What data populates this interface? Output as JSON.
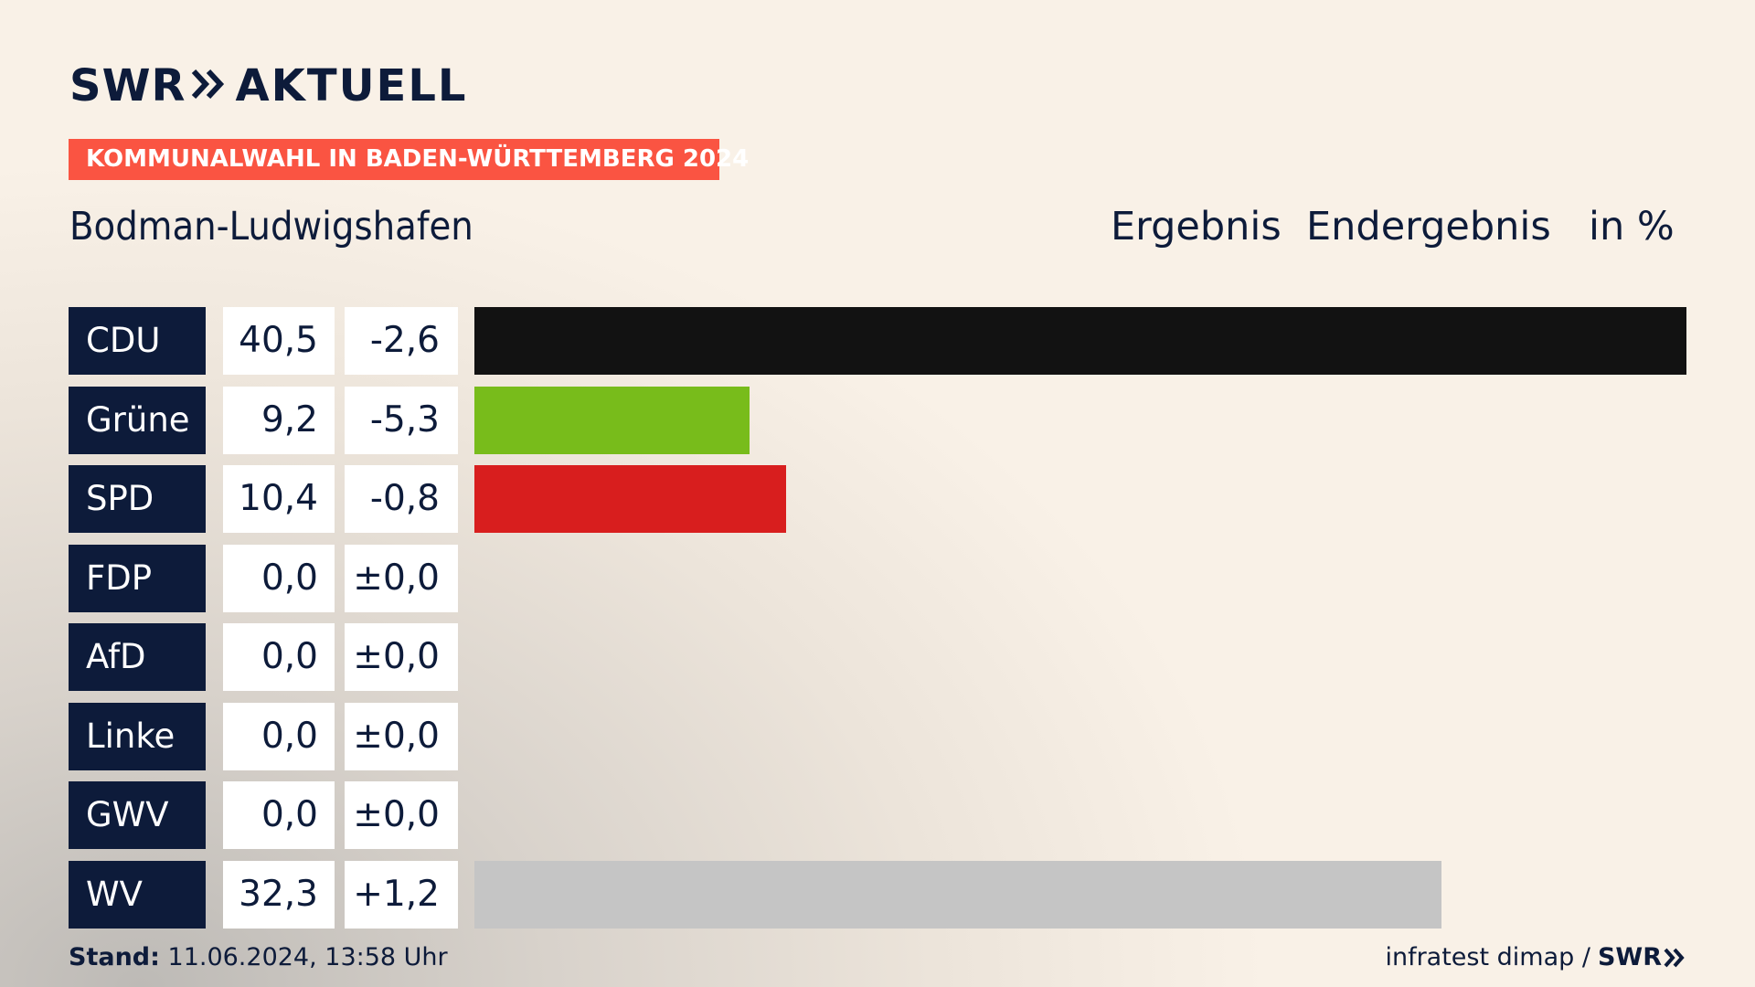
{
  "brand": {
    "name": "SWR",
    "product": "AKTUELL",
    "color": "#0d1b3a",
    "footer_logo": "SWR"
  },
  "election_tag": "KOMMUNALWAHL IN BADEN-WÜRTTEMBERG 2024",
  "place": "Bodman-Ludwigshafen",
  "header": {
    "result": "Ergebnis",
    "status": "Endergebnis",
    "unit": "in %"
  },
  "footer": {
    "stand_label": "Stand:",
    "stand_value": "11.06.2024, 13:58 Uhr",
    "source": "infratest dimap /"
  },
  "chart_data": {
    "type": "bar",
    "orientation": "horizontal",
    "title": "Bodman-Ludwigshafen",
    "categories": [
      "CDU",
      "Grüne",
      "SPD",
      "FDP",
      "AfD",
      "Linke",
      "GWV",
      "WV"
    ],
    "values": [
      40.5,
      9.2,
      10.4,
      0.0,
      0.0,
      0.0,
      0.0,
      32.3
    ],
    "value_labels": [
      "40,5",
      "9,2",
      "10,4",
      "0,0",
      "0,0",
      "0,0",
      "0,0",
      "32,3"
    ],
    "diff_values": [
      -2.6,
      -5.3,
      -0.8,
      0.0,
      0.0,
      0.0,
      0.0,
      1.2
    ],
    "diff_labels": [
      "-2,6",
      "-5,3",
      "-0,8",
      "±0,0",
      "±0,0",
      "±0,0",
      "±0,0",
      "+1,2"
    ],
    "colors": [
      "#121212",
      "#78bc1b",
      "#d81e1e",
      "#ffe000",
      "#0a8ad2",
      "#be3075",
      "#7b7b7b",
      "#c5c5c5"
    ],
    "xlim": [
      0,
      40.5
    ]
  }
}
